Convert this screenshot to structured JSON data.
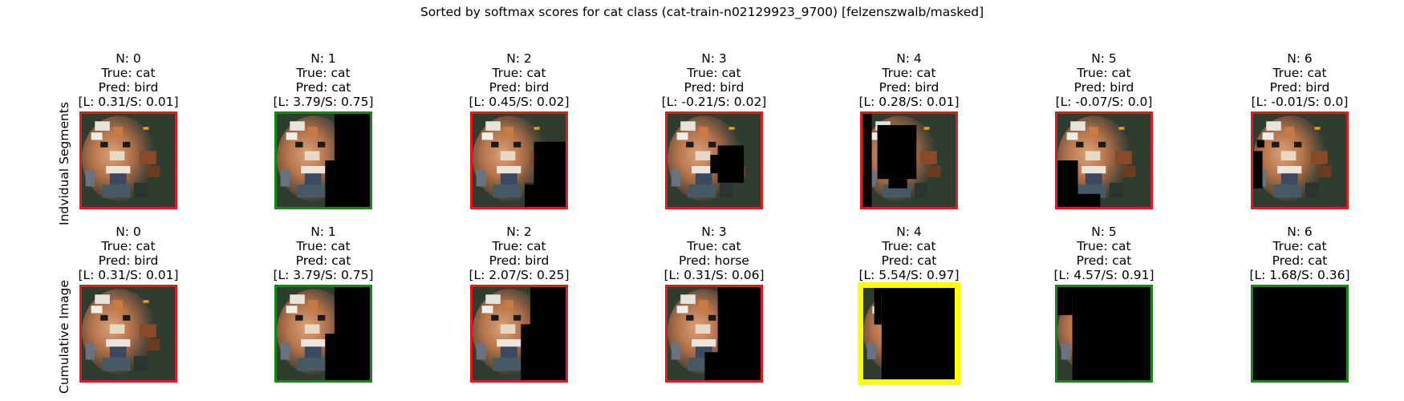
{
  "title": "Sorted by softmax scores for cat class (cat-train-n02129923_9700) [felzenszwalb/masked]",
  "colors": {
    "wrong": "#e01b1b",
    "correct": "#178717",
    "highlight": "#ffff00"
  },
  "rows": [
    {
      "label": "Indvidual Segments",
      "cells": [
        {
          "n": "N: 0",
          "true_label": "True: cat",
          "pred": "Pred: bird",
          "scores": "[L: 0.31/S: 0.01]",
          "frame": "wrong",
          "mask": "none"
        },
        {
          "n": "N: 1",
          "true_label": "True: cat",
          "pred": "Pred: cat",
          "scores": "[L: 3.79/S: 0.75]",
          "frame": "correct",
          "mask": "right"
        },
        {
          "n": "N: 2",
          "true_label": "True: cat",
          "pred": "Pred: bird",
          "scores": "[L: 0.45/S: 0.02]",
          "frame": "wrong",
          "mask": "rightbottom"
        },
        {
          "n": "N: 3",
          "true_label": "True: cat",
          "pred": "Pred: bird",
          "scores": "[L: -0.21/S: 0.02]",
          "frame": "wrong",
          "mask": "midright"
        },
        {
          "n": "N: 4",
          "true_label": "True: cat",
          "pred": "Pred: bird",
          "scores": "[L: 0.28/S: 0.01]",
          "frame": "wrong",
          "mask": "center"
        },
        {
          "n": "N: 5",
          "true_label": "True: cat",
          "pred": "Pred: bird",
          "scores": "[L: -0.07/S: 0.0]",
          "frame": "wrong",
          "mask": "leftbottom"
        },
        {
          "n": "N: 6",
          "true_label": "True: cat",
          "pred": "Pred: bird",
          "scores": "[L: -0.01/S: 0.0]",
          "frame": "wrong",
          "mask": "leftedge"
        }
      ]
    },
    {
      "label": "Cumulative Image",
      "cells": [
        {
          "n": "N: 0",
          "true_label": "True: cat",
          "pred": "Pred: bird",
          "scores": "[L: 0.31/S: 0.01]",
          "frame": "wrong",
          "mask": "none"
        },
        {
          "n": "N: 1",
          "true_label": "True: cat",
          "pred": "Pred: cat",
          "scores": "[L: 3.79/S: 0.75]",
          "frame": "correct",
          "mask": "right"
        },
        {
          "n": "N: 2",
          "true_label": "True: cat",
          "pred": "Pred: bird",
          "scores": "[L: 2.07/S: 0.25]",
          "frame": "wrong",
          "mask": "right2"
        },
        {
          "n": "N: 3",
          "true_label": "True: cat",
          "pred": "Pred: horse",
          "scores": "[L: 0.31/S: 0.06]",
          "frame": "wrong",
          "mask": "right3"
        },
        {
          "n": "N: 4",
          "true_label": "True: cat",
          "pred": "Pred: cat",
          "scores": "[L: 5.54/S: 0.97]",
          "frame": "highlight",
          "mask": "sliver"
        },
        {
          "n": "N: 5",
          "true_label": "True: cat",
          "pred": "Pred: cat",
          "scores": "[L: 4.57/S: 0.91]",
          "frame": "correct",
          "mask": "sliver2"
        },
        {
          "n": "N: 6",
          "true_label": "True: cat",
          "pred": "Pred: cat",
          "scores": "[L: 1.68/S: 0.36]",
          "frame": "correct",
          "mask": "all"
        }
      ]
    }
  ]
}
